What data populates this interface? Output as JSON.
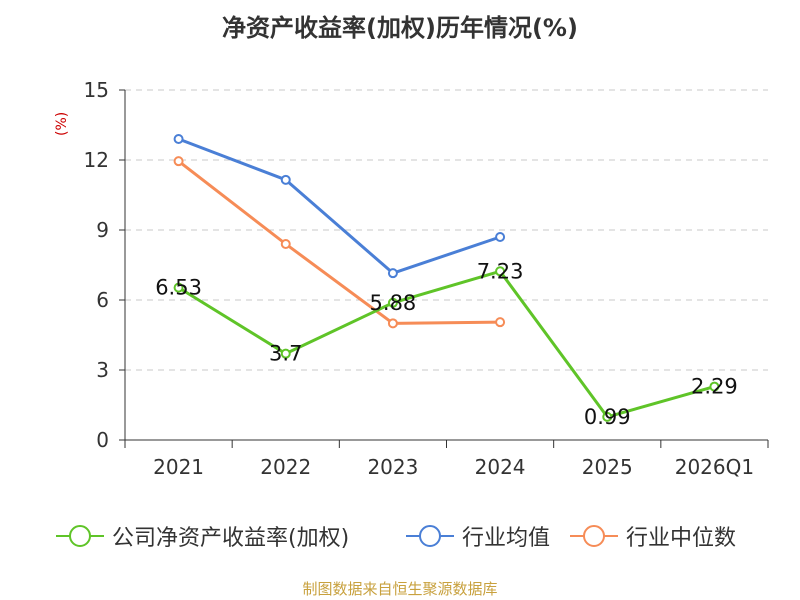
{
  "chart_data": {
    "type": "line",
    "title": "净资产收益率(加权)历年情况(%)",
    "ylabel": "(%)",
    "xlabel": "",
    "categories": [
      "2021",
      "2022",
      "2023",
      "2024",
      "2025",
      "2026Q1"
    ],
    "ylim": [
      0,
      15
    ],
    "yticks": [
      0,
      3,
      6,
      9,
      12,
      15
    ],
    "grid": true,
    "legend_position": "bottom",
    "series": [
      {
        "name": "公司净资产收益率(加权)",
        "color": "#5fc428",
        "values": [
          6.53,
          3.7,
          5.88,
          7.23,
          0.99,
          2.29
        ],
        "labels": [
          "6.53",
          "3.7",
          "5.88",
          "7.23",
          "0.99",
          "2.29"
        ]
      },
      {
        "name": "行业均值",
        "color": "#4a7fd6",
        "values": [
          12.9,
          11.15,
          7.15,
          8.7,
          null,
          null
        ]
      },
      {
        "name": "行业中位数",
        "color": "#f68c57",
        "values": [
          11.95,
          8.4,
          5.0,
          5.05,
          null,
          null
        ]
      }
    ]
  },
  "source": "制图数据来自恒生聚源数据库"
}
